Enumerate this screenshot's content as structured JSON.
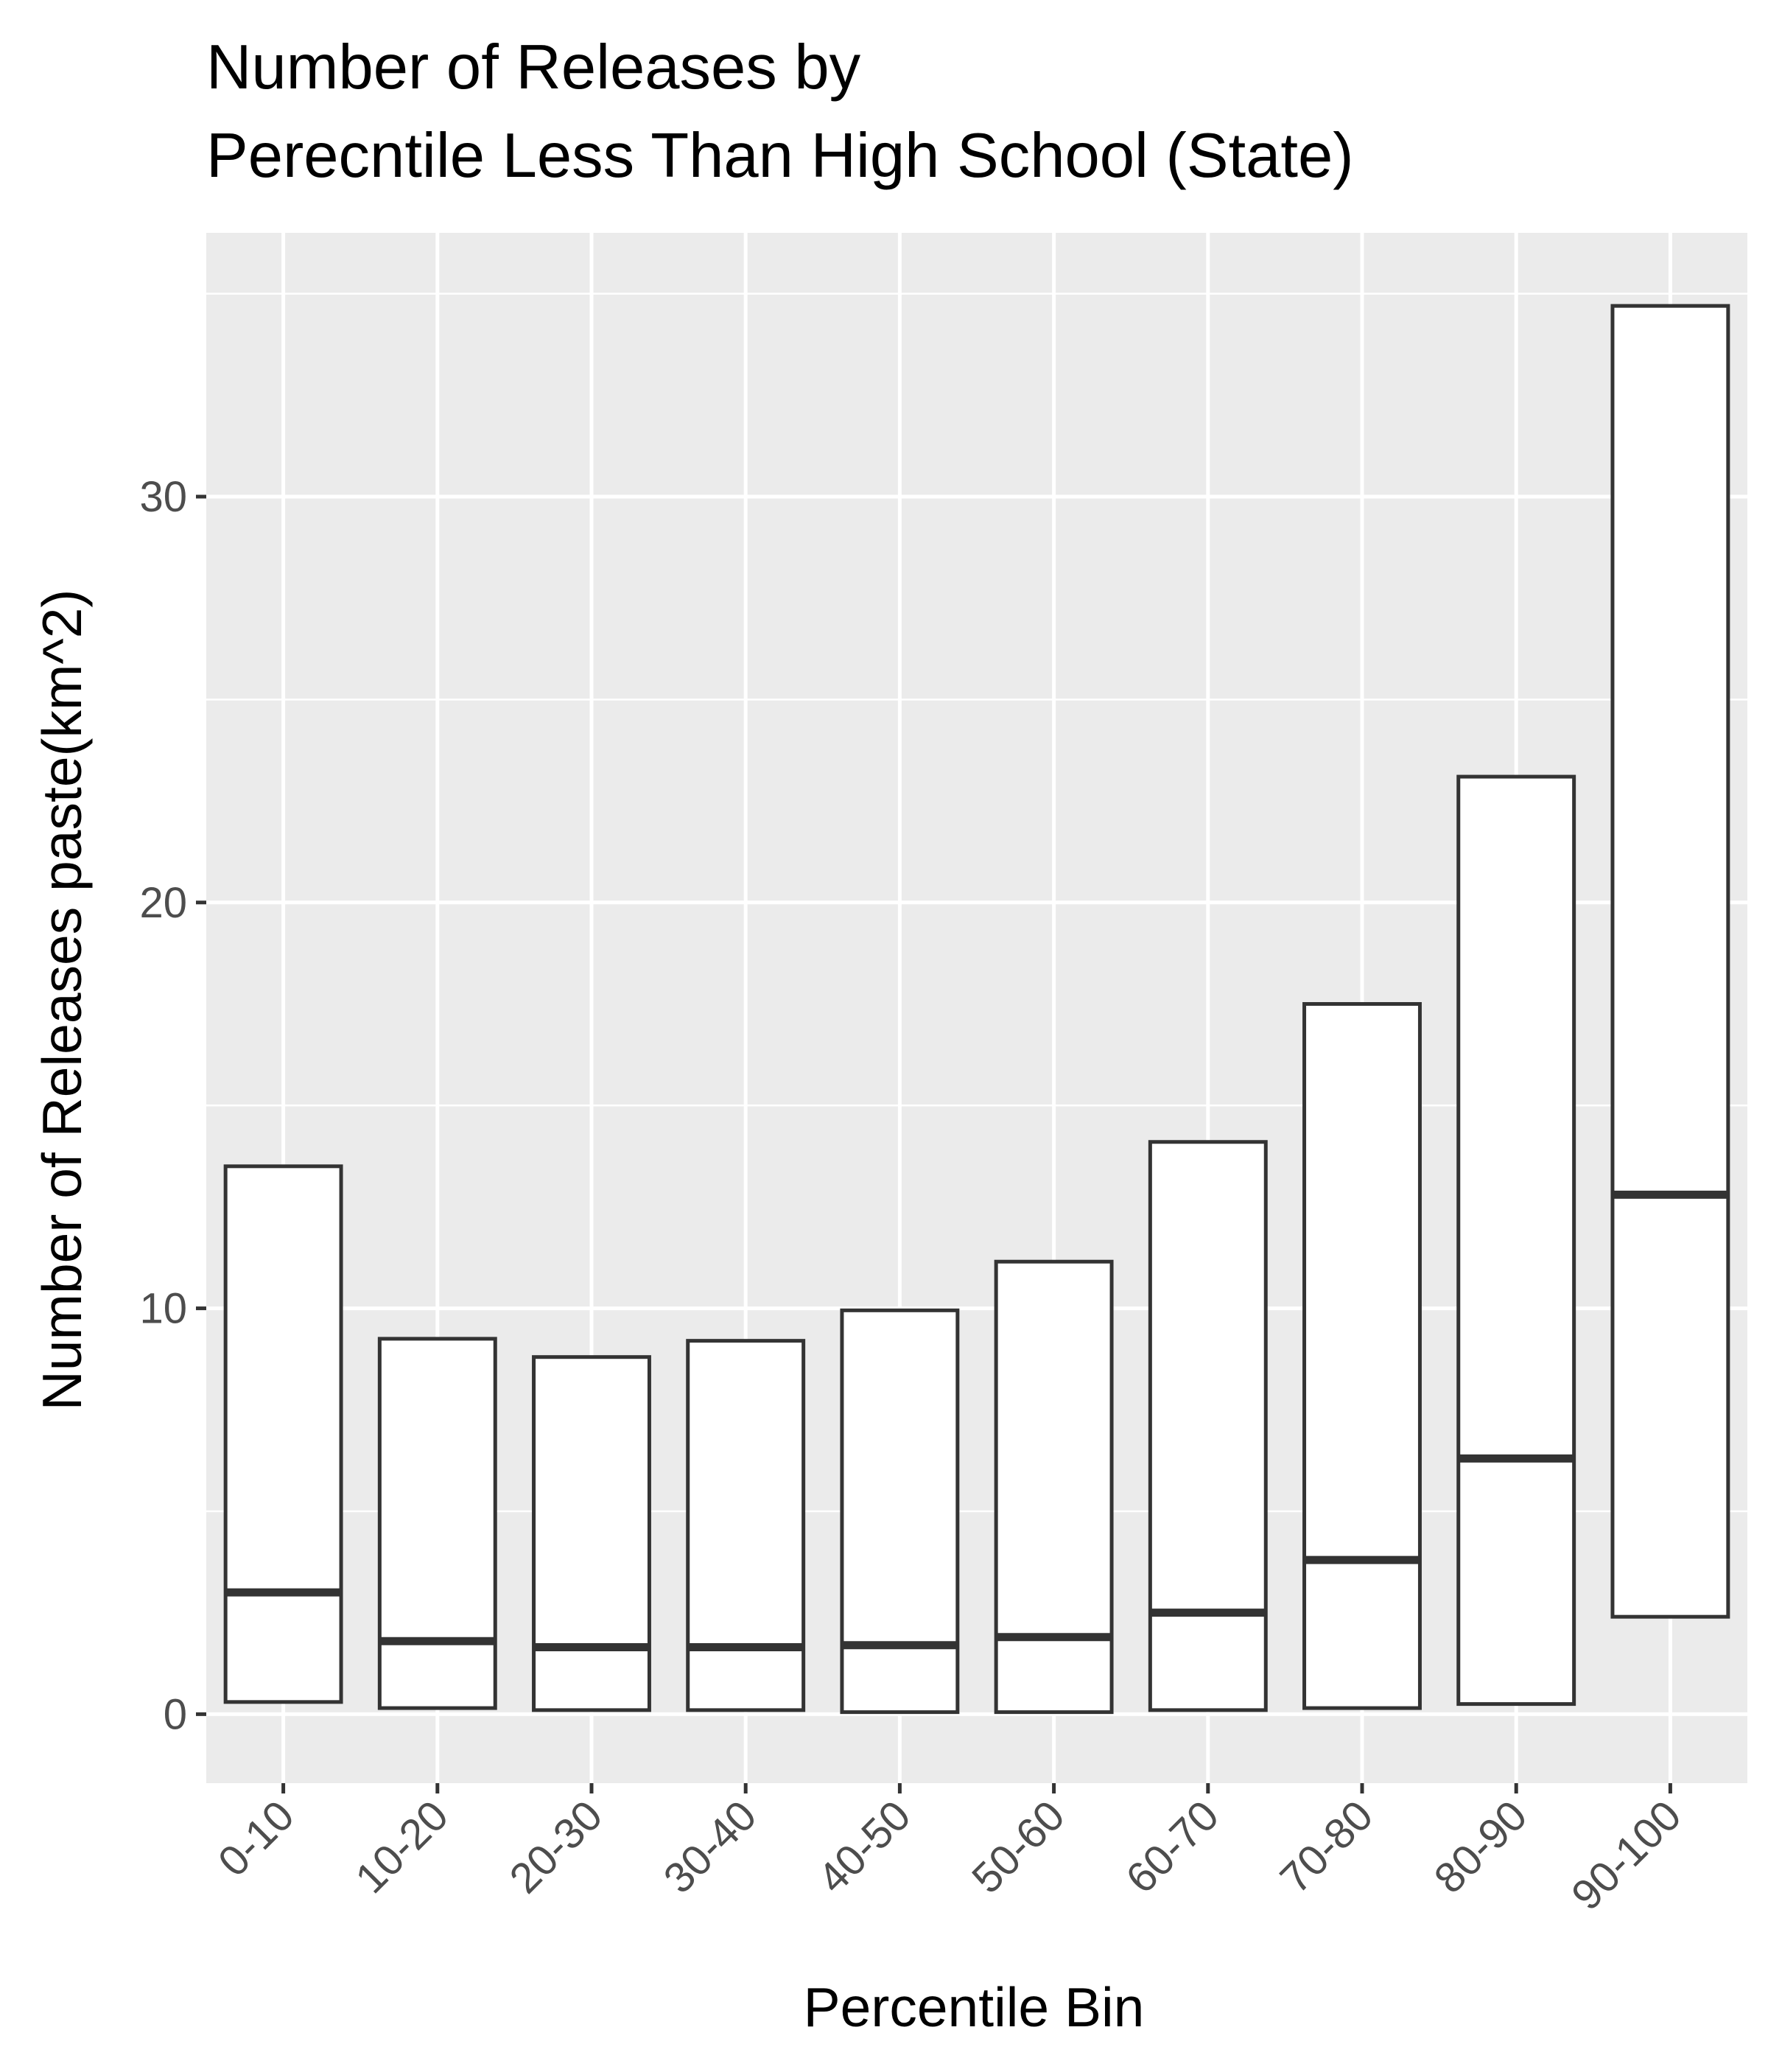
{
  "chart_data": {
    "type": "box",
    "title": "Number of Releases by\nPerecntile Less Than High School (State)",
    "title_lines": [
      "Number of Releases by",
      "Perecntile Less Than High School (State)"
    ],
    "xlabel": "Percentile Bin",
    "ylabel": "Number of Releases paste(km^2)",
    "ylim": [
      -1.7,
      36.5
    ],
    "yticks": [
      0,
      10,
      20,
      30
    ],
    "ytick_labels": [
      "0",
      "10",
      "20",
      "30"
    ],
    "categories": [
      "0-10",
      "10-20",
      "20-30",
      "30-40",
      "40-50",
      "50-60",
      "60-70",
      "70-80",
      "80-90",
      "90-100"
    ],
    "series": [
      {
        "lower": [
          0.3,
          0.15,
          0.1,
          0.1,
          0.05,
          0.05,
          0.1,
          0.15,
          0.25,
          2.4
        ],
        "median": [
          3.0,
          1.8,
          1.65,
          1.65,
          1.7,
          1.9,
          2.5,
          3.8,
          6.3,
          12.8
        ],
        "upper": [
          13.5,
          9.25,
          8.8,
          9.2,
          9.95,
          11.15,
          14.1,
          17.5,
          23.1,
          34.7
        ]
      }
    ],
    "colors": {
      "panel_background": "#ebebeb",
      "grid": "#ffffff",
      "box_fill": "#ffffff",
      "box_outline": "#333333",
      "tick_label": "#4d4d4d",
      "title": "#000000"
    },
    "grid": true,
    "legend": "none"
  }
}
